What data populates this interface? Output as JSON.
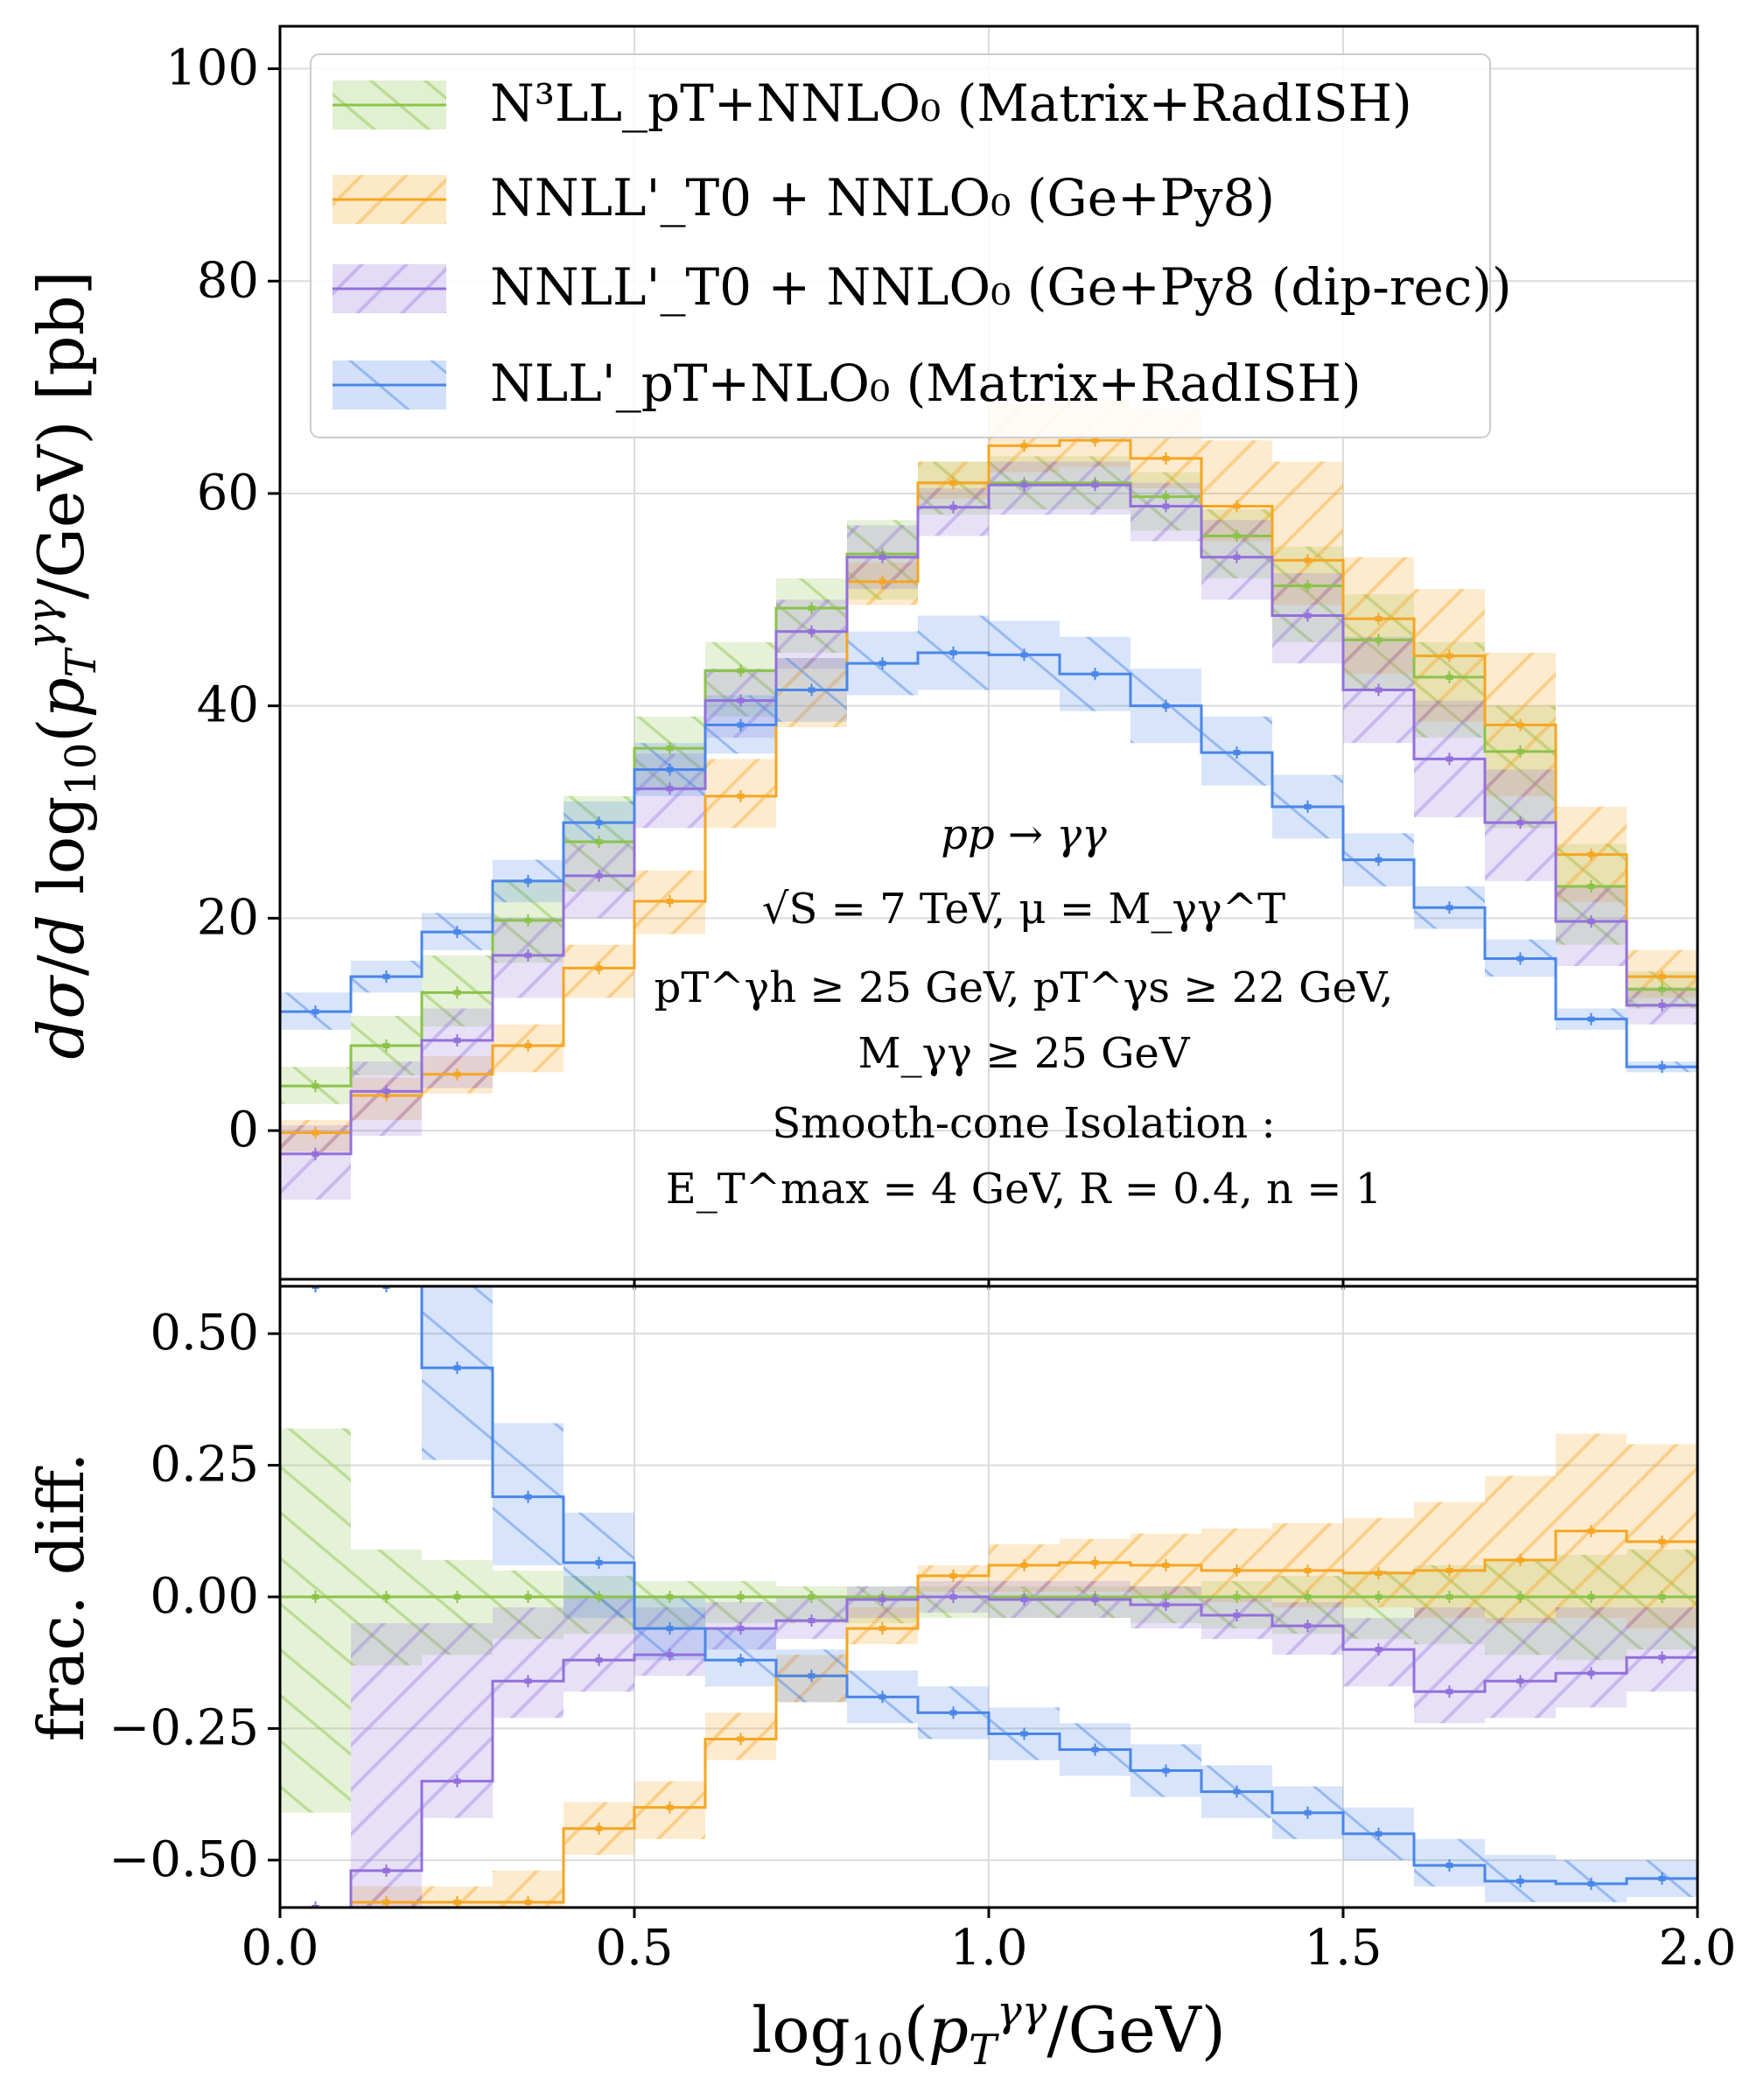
{
  "chart_data": [
    {
      "type": "line",
      "subtype": "step-histogram-with-bands",
      "panel": "main",
      "ylabel": "dσ/d log10(pT^γγ/GeV)   [pb]",
      "xlabel": "",
      "xlim": [
        0.0,
        2.0
      ],
      "ylim": [
        -14,
        104
      ],
      "yticks": [
        0,
        20,
        40,
        60,
        80,
        100
      ],
      "ytick_labels": [
        "0",
        "20",
        "40",
        "60",
        "80",
        "100"
      ],
      "grid": true,
      "legend_position": "top-left",
      "bin_edges": [
        0.0,
        0.1,
        0.2,
        0.3,
        0.4,
        0.5,
        0.6,
        0.7,
        0.8,
        0.9,
        1.0,
        1.1,
        1.2,
        1.3,
        1.4,
        1.5,
        1.6,
        1.7,
        1.8,
        1.9,
        2.0
      ],
      "series": [
        {
          "name": "N³LL_pT+NNLO₀ (Matrix+RadISH)",
          "color": "#8bc34a",
          "values": [
            4.2,
            8.0,
            13.0,
            19.8,
            27.2,
            36.0,
            43.3,
            49.2,
            54.3,
            61.0,
            61.0,
            61.0,
            59.7,
            56.0,
            51.3,
            46.2,
            42.7,
            35.7,
            23.0,
            13.3
          ],
          "lower": [
            2.5,
            5.2,
            9.8,
            15.8,
            22.5,
            32.0,
            39.0,
            45.0,
            50.0,
            58.0,
            58.5,
            58.5,
            56.5,
            52.0,
            46.0,
            41.5,
            37.0,
            28.5,
            17.5,
            11.5
          ],
          "upper": [
            6.0,
            10.8,
            16.5,
            23.5,
            31.5,
            39.0,
            46.0,
            52.0,
            57.5,
            63.0,
            63.5,
            63.5,
            62.0,
            58.5,
            55.0,
            50.5,
            46.0,
            40.0,
            27.0,
            15.0
          ]
        },
        {
          "name": "NNLL'_T0 + NNLO₀ (Ge+Py8)",
          "color": "#f5a623",
          "values": [
            -0.2,
            3.3,
            5.3,
            8.0,
            15.3,
            21.6,
            31.5,
            41.5,
            51.7,
            61.0,
            64.5,
            65.0,
            63.3,
            58.8,
            53.7,
            48.2,
            44.7,
            38.2,
            26.0,
            14.5
          ],
          "lower": [
            -2.0,
            1.0,
            3.5,
            5.5,
            12.5,
            18.5,
            28.5,
            38.0,
            49.5,
            59.5,
            62.0,
            62.5,
            60.5,
            55.5,
            49.5,
            43.0,
            38.5,
            31.5,
            21.5,
            12.5
          ],
          "upper": [
            1.0,
            5.0,
            7.0,
            10.0,
            17.5,
            24.5,
            35.0,
            44.5,
            53.5,
            63.0,
            68.5,
            69.0,
            68.0,
            65.0,
            63.0,
            54.0,
            51.0,
            45.0,
            30.5,
            17.0
          ]
        },
        {
          "name": "NNLL'_T0 + NNLO₀ (Ge+Py8 (dip-rec))",
          "color": "#9370db",
          "values": [
            -2.2,
            3.7,
            8.5,
            16.5,
            24.0,
            32.2,
            40.5,
            47.0,
            54.0,
            58.7,
            60.8,
            60.8,
            58.8,
            54.0,
            48.5,
            41.5,
            35.0,
            29.0,
            19.7,
            11.8
          ],
          "lower": [
            -6.5,
            -0.5,
            4.0,
            12.5,
            20.0,
            28.5,
            37.0,
            43.5,
            51.0,
            56.0,
            58.0,
            58.0,
            55.5,
            50.0,
            44.0,
            36.5,
            29.5,
            23.5,
            15.5,
            10.0
          ],
          "upper": [
            0.5,
            6.5,
            11.5,
            20.0,
            27.0,
            35.5,
            43.5,
            50.0,
            57.0,
            60.5,
            63.0,
            63.0,
            61.0,
            57.5,
            52.5,
            46.5,
            40.5,
            34.0,
            23.0,
            13.5
          ]
        },
        {
          "name": "NLL'_pT+NLO₀ (Matrix+RadISH)",
          "color": "#4a86e8",
          "values": [
            11.2,
            14.5,
            18.7,
            23.5,
            29.0,
            34.0,
            38.2,
            41.5,
            44.0,
            45.0,
            44.8,
            43.0,
            40.0,
            35.6,
            30.5,
            25.5,
            21.0,
            16.2,
            10.5,
            6.0
          ],
          "lower": [
            9.5,
            13.0,
            17.0,
            21.5,
            27.0,
            31.5,
            35.5,
            38.5,
            41.0,
            41.5,
            41.5,
            39.5,
            36.5,
            32.5,
            27.5,
            23.0,
            19.0,
            14.5,
            9.5,
            5.5
          ],
          "upper": [
            13.0,
            16.0,
            20.5,
            25.5,
            31.0,
            36.5,
            41.0,
            44.5,
            47.0,
            48.5,
            48.0,
            46.5,
            43.5,
            39.0,
            33.5,
            28.0,
            23.0,
            18.0,
            11.5,
            6.5
          ]
        }
      ],
      "annotations": [
        "pp → γγ",
        "√S = 7 TeV, μ = M_γγ^T",
        "pT^γh ≥ 25 GeV,  pT^γs ≥ 22 GeV,",
        "M_γγ ≥ 25 GeV",
        "Smooth-cone Isolation :",
        "E_T^max = 4 GeV,  R = 0.4,  n = 1"
      ]
    },
    {
      "type": "line",
      "subtype": "step-histogram-with-bands",
      "panel": "ratio",
      "ylabel": "frac. diff.",
      "xlabel": "log10(pT^γγ/GeV)",
      "xlim": [
        0.0,
        2.0
      ],
      "ylim": [
        -0.59,
        0.59
      ],
      "xticks": [
        0.0,
        0.5,
        1.0,
        1.5,
        2.0
      ],
      "xtick_labels": [
        "0.0",
        "0.5",
        "1.0",
        "1.5",
        "2.0"
      ],
      "yticks": [
        -0.5,
        -0.25,
        0.0,
        0.25,
        0.5
      ],
      "ytick_labels": [
        "−0.50",
        "−0.25",
        "0.00",
        "0.25",
        "0.50"
      ],
      "grid": true,
      "bin_edges": [
        0.0,
        0.1,
        0.2,
        0.3,
        0.4,
        0.5,
        0.6,
        0.7,
        0.8,
        0.9,
        1.0,
        1.1,
        1.2,
        1.3,
        1.4,
        1.5,
        1.6,
        1.7,
        1.8,
        1.9,
        2.0
      ],
      "series": [
        {
          "name": "N³LL_pT+NNLO₀ (Matrix+RadISH)",
          "color": "#8bc34a",
          "values": [
            0,
            0,
            0,
            0,
            0,
            0,
            0,
            0,
            0,
            0,
            0,
            0,
            0,
            0,
            0,
            0,
            0,
            0,
            0,
            0
          ],
          "lower": [
            -0.41,
            -0.13,
            -0.11,
            -0.08,
            -0.07,
            -0.06,
            -0.05,
            -0.05,
            -0.05,
            -0.04,
            -0.04,
            -0.04,
            -0.05,
            -0.06,
            -0.07,
            -0.08,
            -0.09,
            -0.11,
            -0.12,
            -0.1
          ],
          "upper": [
            0.32,
            0.09,
            0.07,
            0.05,
            0.04,
            0.03,
            0.03,
            0.02,
            0.02,
            0.02,
            0.02,
            0.02,
            0.02,
            0.03,
            0.04,
            0.05,
            0.06,
            0.07,
            0.08,
            0.09
          ]
        },
        {
          "name": "NNLL'_T0 + NNLO₀ (Ge+Py8)",
          "color": "#f5a623",
          "values": [
            -0.59,
            -0.58,
            -0.58,
            -0.58,
            -0.44,
            -0.4,
            -0.27,
            -0.15,
            -0.06,
            0.04,
            0.06,
            0.065,
            0.06,
            0.05,
            0.05,
            0.045,
            0.05,
            0.07,
            0.125,
            0.105
          ],
          "lower": [
            -0.59,
            -0.59,
            -0.59,
            -0.59,
            -0.49,
            -0.46,
            -0.31,
            -0.2,
            -0.09,
            0.01,
            0.01,
            0.01,
            0.0,
            -0.01,
            -0.02,
            -0.02,
            -0.04,
            -0.05,
            -0.04,
            -0.06
          ],
          "upper": [
            -0.59,
            -0.55,
            -0.55,
            -0.52,
            -0.39,
            -0.35,
            -0.22,
            -0.11,
            -0.02,
            0.06,
            0.1,
            0.11,
            0.12,
            0.13,
            0.14,
            0.15,
            0.18,
            0.23,
            0.31,
            0.29
          ]
        },
        {
          "name": "NNLL'_T0 + NNLO₀ (Ge+Py8 (dip-rec))",
          "color": "#9370db",
          "values": [
            -0.59,
            -0.52,
            -0.35,
            -0.16,
            -0.12,
            -0.11,
            -0.06,
            -0.045,
            -0.005,
            0.0,
            -0.005,
            -0.005,
            -0.015,
            -0.035,
            -0.055,
            -0.1,
            -0.18,
            -0.16,
            -0.145,
            -0.115
          ],
          "lower": [
            -0.59,
            -0.59,
            -0.42,
            -0.23,
            -0.18,
            -0.15,
            -0.1,
            -0.08,
            -0.04,
            -0.03,
            -0.04,
            -0.04,
            -0.06,
            -0.08,
            -0.11,
            -0.17,
            -0.24,
            -0.23,
            -0.21,
            -0.18
          ],
          "upper": [
            -0.59,
            -0.05,
            -0.05,
            -0.02,
            0.0,
            -0.02,
            -0.01,
            0.0,
            0.02,
            0.03,
            0.03,
            0.03,
            0.02,
            0.0,
            -0.01,
            -0.04,
            -0.02,
            -0.04,
            -0.02,
            -0.02
          ]
        },
        {
          "name": "NLL'_pT+NLO₀ (Matrix+RadISH)",
          "color": "#4a86e8",
          "values": [
            0.59,
            0.59,
            0.435,
            0.19,
            0.065,
            -0.06,
            -0.12,
            -0.15,
            -0.19,
            -0.22,
            -0.26,
            -0.29,
            -0.33,
            -0.37,
            -0.41,
            -0.45,
            -0.51,
            -0.54,
            -0.545,
            -0.535
          ],
          "lower": [
            0.59,
            0.59,
            0.26,
            0.06,
            -0.04,
            -0.12,
            -0.17,
            -0.2,
            -0.24,
            -0.27,
            -0.31,
            -0.34,
            -0.38,
            -0.42,
            -0.46,
            -0.5,
            -0.55,
            -0.58,
            -0.58,
            -0.57
          ],
          "upper": [
            0.59,
            0.59,
            0.59,
            0.33,
            0.16,
            0.0,
            -0.06,
            -0.1,
            -0.14,
            -0.17,
            -0.21,
            -0.24,
            -0.28,
            -0.32,
            -0.36,
            -0.4,
            -0.46,
            -0.49,
            -0.5,
            -0.5
          ]
        }
      ]
    }
  ]
}
